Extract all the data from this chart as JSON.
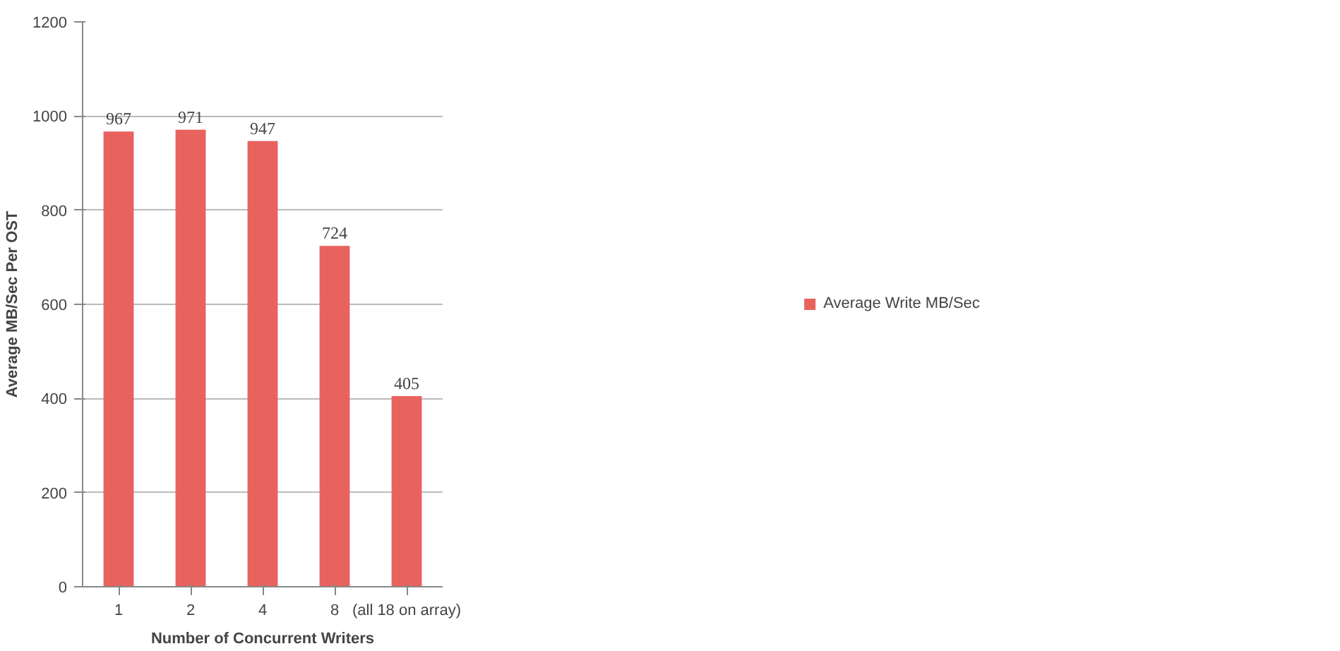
{
  "chart_data": {
    "type": "bar",
    "xlabel": "Number of Concurrent Writers",
    "ylabel": "Average MB/Sec Per OST",
    "categories": [
      "1",
      "2",
      "4",
      "8",
      "(all 18 on array)"
    ],
    "series": [
      {
        "name": "Average Write MB/Sec",
        "color": "#e8625e",
        "values": [
          967,
          971,
          947,
          724,
          405
        ]
      }
    ],
    "ylim": [
      0,
      1200
    ],
    "yticks": [
      0,
      200,
      400,
      600,
      800,
      1000,
      1200
    ],
    "grid": "y",
    "legend": "right",
    "data_labels": true
  }
}
